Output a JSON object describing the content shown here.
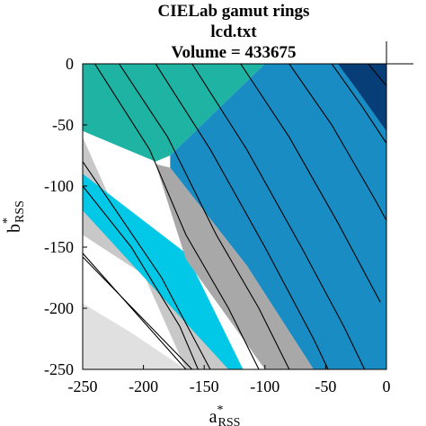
{
  "chart_data": {
    "type": "area",
    "title_lines": [
      "CIELab gamut rings",
      "lcd.txt",
      "Volume = 433675"
    ],
    "xlabel": {
      "base": "a",
      "sup": "*",
      "sub": "RSS"
    },
    "ylabel": {
      "base": "b",
      "sup": "*",
      "sub": "RSS"
    },
    "xlim": [
      -250,
      0
    ],
    "ylim": [
      -250,
      0
    ],
    "xticks": [
      -250,
      -200,
      -150,
      -100,
      -50,
      0
    ],
    "yticks": [
      0,
      -50,
      -100,
      -150,
      -200,
      -250
    ],
    "xtick_labels": [
      "-250",
      "-200",
      "-150",
      "-100",
      "-50",
      "0"
    ],
    "ytick_labels": [
      "0",
      "-50",
      "-100",
      "-150",
      "-200",
      "-250"
    ],
    "grid": false,
    "colors": {
      "light_gray": "#e0e0e0",
      "mid_gray": "#c8c8c8",
      "dark_gray": "#a8a8a8",
      "teal": "#1fb3a4",
      "cyan": "#00c8e6",
      "blue_mid": "#1a8cc4",
      "blue_dark": "#0a5aa0",
      "navy": "#083e78"
    },
    "regions": [
      {
        "fill": "light_gray",
        "points": [
          [
            -250,
            -162
          ],
          [
            -250,
            -250
          ],
          [
            -165,
            -250
          ],
          [
            -210,
            -220
          ],
          [
            -250,
            -196
          ]
        ]
      },
      {
        "fill": "mid_gray",
        "points": [
          [
            -250,
            -155
          ],
          [
            -250,
            -60
          ],
          [
            -165,
            -250
          ],
          [
            -118,
            -250
          ],
          [
            -165,
            -195
          ],
          [
            -250,
            -140
          ]
        ]
      },
      {
        "fill": "cyan",
        "points": [
          [
            -250,
            -120
          ],
          [
            -250,
            -90
          ],
          [
            -165,
            -155
          ],
          [
            -118,
            -250
          ],
          [
            -130,
            -250
          ]
        ]
      },
      {
        "fill": "teal",
        "points": [
          [
            -250,
            -70
          ],
          [
            -250,
            0
          ],
          [
            -100,
            0
          ],
          [
            -178,
            -75
          ],
          [
            -190,
            -80
          ],
          [
            -250,
            -55
          ]
        ]
      },
      {
        "fill": "blue_mid",
        "points": [
          [
            -178,
            -75
          ],
          [
            -100,
            0
          ],
          [
            -20,
            0
          ],
          [
            0,
            -20
          ],
          [
            0,
            -250
          ],
          [
            -60,
            -250
          ],
          [
            -115,
            -165
          ],
          [
            -178,
            -85
          ]
        ]
      },
      {
        "fill": "dark_gray",
        "points": [
          [
            -190,
            -82
          ],
          [
            -178,
            -85
          ],
          [
            -115,
            -165
          ],
          [
            -60,
            -250
          ],
          [
            -100,
            -250
          ],
          [
            -165,
            -160
          ]
        ]
      },
      {
        "fill": "navy",
        "points": [
          [
            -40,
            0
          ],
          [
            0,
            0
          ],
          [
            0,
            -55
          ],
          [
            -25,
            -20
          ]
        ]
      }
    ],
    "contours": [
      [
        [
          -250,
          -155
        ],
        [
          -165,
          -250
        ]
      ],
      [
        [
          -250,
          -158
        ],
        [
          -160,
          -250
        ]
      ],
      [
        [
          -250,
          -100
        ],
        [
          -210,
          -150
        ],
        [
          -170,
          -215
        ],
        [
          -155,
          -250
        ]
      ],
      [
        [
          -250,
          -80
        ],
        [
          -185,
          -175
        ],
        [
          -145,
          -250
        ]
      ],
      [
        [
          -240,
          0
        ],
        [
          -195,
          -70
        ],
        [
          -165,
          -140
        ],
        [
          -130,
          -200
        ],
        [
          -105,
          -250
        ]
      ],
      [
        [
          -220,
          0
        ],
        [
          -180,
          -60
        ],
        [
          -140,
          -140
        ],
        [
          -105,
          -200
        ],
        [
          -80,
          -250
        ]
      ],
      [
        [
          -190,
          0
        ],
        [
          -145,
          -70
        ],
        [
          -100,
          -150
        ],
        [
          -60,
          -225
        ],
        [
          -48,
          -250
        ]
      ],
      [
        [
          -160,
          0
        ],
        [
          -115,
          -70
        ],
        [
          -70,
          -150
        ],
        [
          -35,
          -215
        ],
        [
          -18,
          -250
        ]
      ],
      [
        [
          -120,
          0
        ],
        [
          -80,
          -60
        ],
        [
          -40,
          -130
        ],
        [
          -5,
          -195
        ]
      ],
      [
        [
          -80,
          0
        ],
        [
          -45,
          -50
        ],
        [
          -10,
          -110
        ],
        [
          0,
          -128
        ]
      ],
      [
        [
          -45,
          0
        ],
        [
          -20,
          -35
        ],
        [
          0,
          -65
        ]
      ],
      [
        [
          -15,
          0
        ],
        [
          0,
          -18
        ]
      ]
    ],
    "crosshair": {
      "x": 0,
      "y": 0
    }
  }
}
